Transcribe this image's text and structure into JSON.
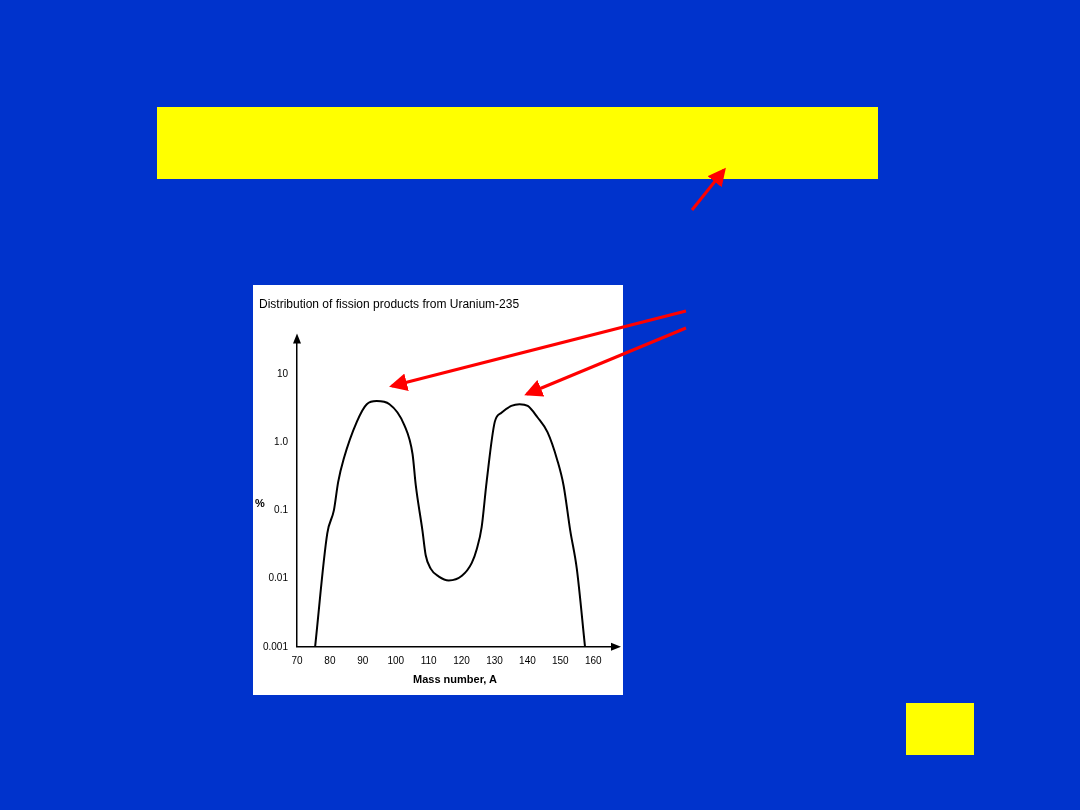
{
  "chart_data": {
    "type": "line",
    "title": "Distribution of fission products from Uranium-235",
    "xlabel": "Mass number, A",
    "ylabel": "%",
    "log": "y",
    "grid": false,
    "legend": false,
    "marker": "none",
    "line_style": "solid",
    "xlim": [
      70,
      166
    ],
    "xticks": [
      70,
      80,
      90,
      100,
      110,
      120,
      130,
      140,
      150,
      160
    ],
    "ylim": [
      0.001,
      30
    ],
    "yticks": [
      {
        "value": 10,
        "label": "10"
      },
      {
        "value": 1,
        "label": "1.0"
      },
      {
        "value": 0.1,
        "label": "0.1"
      },
      {
        "value": 0.01,
        "label": "0.01"
      },
      {
        "value": 0.001,
        "label": "0.001"
      }
    ],
    "series": [
      {
        "color": "#000000",
        "x": [
          75.5,
          79.2,
          81.2,
          82.5,
          84.2,
          88.2,
          91.2,
          94.2,
          98.1,
          102.6,
          105.1,
          106.1,
          108.1,
          109.1,
          110.6,
          113.1,
          116.1,
          120.1,
          123.1,
          124.6,
          126.1,
          127.6,
          130.1,
          132.1,
          135.1,
          137.6,
          140.1,
          143.1,
          146.1,
          149.1,
          151,
          153,
          155,
          157.5
        ],
        "values": [
          0.001,
          0.046,
          0.1,
          0.26,
          0.57,
          2.0,
          3.6,
          4.0,
          3.6,
          1.78,
          0.67,
          0.23,
          0.051,
          0.022,
          0.014,
          0.0107,
          0.0094,
          0.011,
          0.017,
          0.027,
          0.057,
          0.26,
          2.0,
          2.7,
          3.4,
          3.6,
          3.4,
          2.3,
          1.4,
          0.54,
          0.23,
          0.051,
          0.014,
          0.001
        ]
      }
    ]
  }
}
